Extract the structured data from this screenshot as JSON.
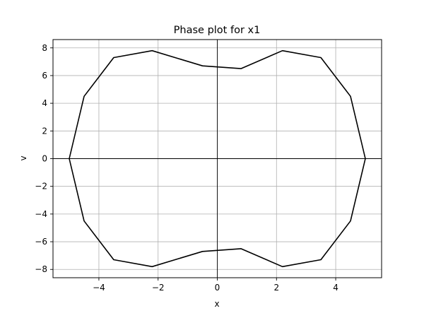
{
  "chart_data": {
    "type": "line",
    "title": "Phase plot for x1",
    "xlabel": "x",
    "ylabel": "v",
    "xlim": [
      -5.55,
      5.55
    ],
    "ylim": [
      -8.6,
      8.6
    ],
    "xticks": [
      -4,
      -2,
      0,
      2,
      4
    ],
    "yticks": [
      -8,
      -6,
      -4,
      -2,
      0,
      2,
      4,
      6,
      8
    ],
    "xtick_labels": [
      "−4",
      "−2",
      "0",
      "2",
      "4"
    ],
    "ytick_labels": [
      "−8",
      "−6",
      "−4",
      "−2",
      "0",
      "2",
      "4",
      "6",
      "8"
    ],
    "grid": true,
    "zero_lines": true,
    "line_color": "#000000",
    "series": [
      {
        "x": [
          -5.0,
          -4.5,
          -3.5,
          -2.2,
          -0.5,
          0.8,
          2.2,
          3.5,
          4.5,
          5.0,
          4.5,
          3.5,
          2.2,
          0.8,
          -0.5,
          -2.2,
          -3.5,
          -4.5,
          -5.0
        ],
        "y": [
          0.0,
          4.5,
          7.3,
          7.8,
          6.7,
          6.5,
          7.8,
          7.3,
          4.5,
          0.0,
          -4.5,
          -7.3,
          -7.8,
          -6.5,
          -6.7,
          -7.8,
          -7.3,
          -4.5,
          0.0
        ]
      }
    ]
  }
}
